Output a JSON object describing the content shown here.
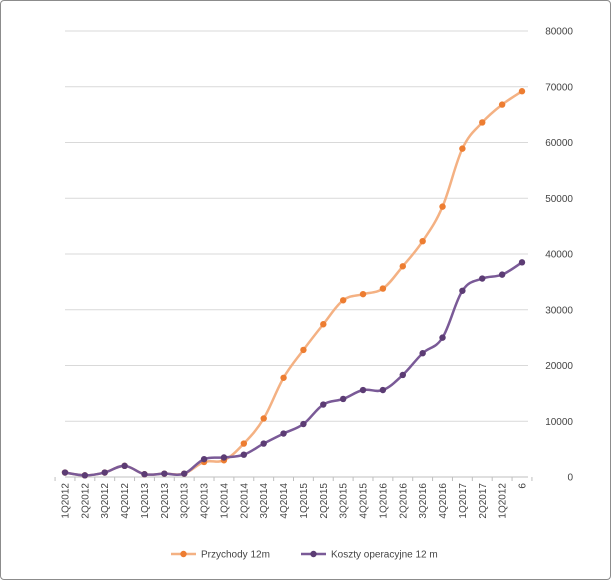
{
  "chart_data": {
    "type": "line",
    "categories": [
      "1Q2012",
      "2Q2012",
      "3Q2012",
      "4Q2012",
      "1Q2013",
      "2Q2013",
      "3Q2013",
      "4Q2013",
      "1Q2014",
      "2Q2014",
      "3Q2014",
      "4Q2014",
      "1Q2015",
      "2Q2015",
      "3Q2015",
      "4Q2015",
      "1Q2016",
      "2Q2016",
      "3Q2016",
      "4Q2016",
      "1Q2017",
      "2Q2017",
      "1Q2012",
      "6"
    ],
    "series": [
      {
        "name": "Przychody  12m",
        "color": "#ED7D31",
        "line_color": "#F4B183",
        "values": [
          800,
          300,
          800,
          2000,
          500,
          600,
          600,
          2700,
          3000,
          6000,
          10500,
          17800,
          22800,
          27400,
          31700,
          32800,
          33800,
          37800,
          42300,
          48500,
          58900,
          63600,
          66800,
          69200
        ]
      },
      {
        "name": "Koszty  operacyjne  12 m",
        "color": "#5C3C74",
        "line_color": "#7A5A97",
        "values": [
          800,
          300,
          800,
          2000,
          500,
          600,
          600,
          3200,
          3500,
          4000,
          6000,
          7800,
          9500,
          13000,
          14000,
          15600,
          15600,
          18300,
          22200,
          25000,
          33400,
          35600,
          36300,
          38500
        ]
      }
    ],
    "ylim": [
      0,
      80000
    ],
    "y_ticks": [
      "0",
      "10000",
      "20000",
      "30000",
      "40000",
      "50000",
      "60000",
      "70000",
      "80000"
    ],
    "y_axis_position": "right",
    "grid": true,
    "legend_position": "bottom",
    "title": "",
    "xlabel": "",
    "ylabel": ""
  }
}
